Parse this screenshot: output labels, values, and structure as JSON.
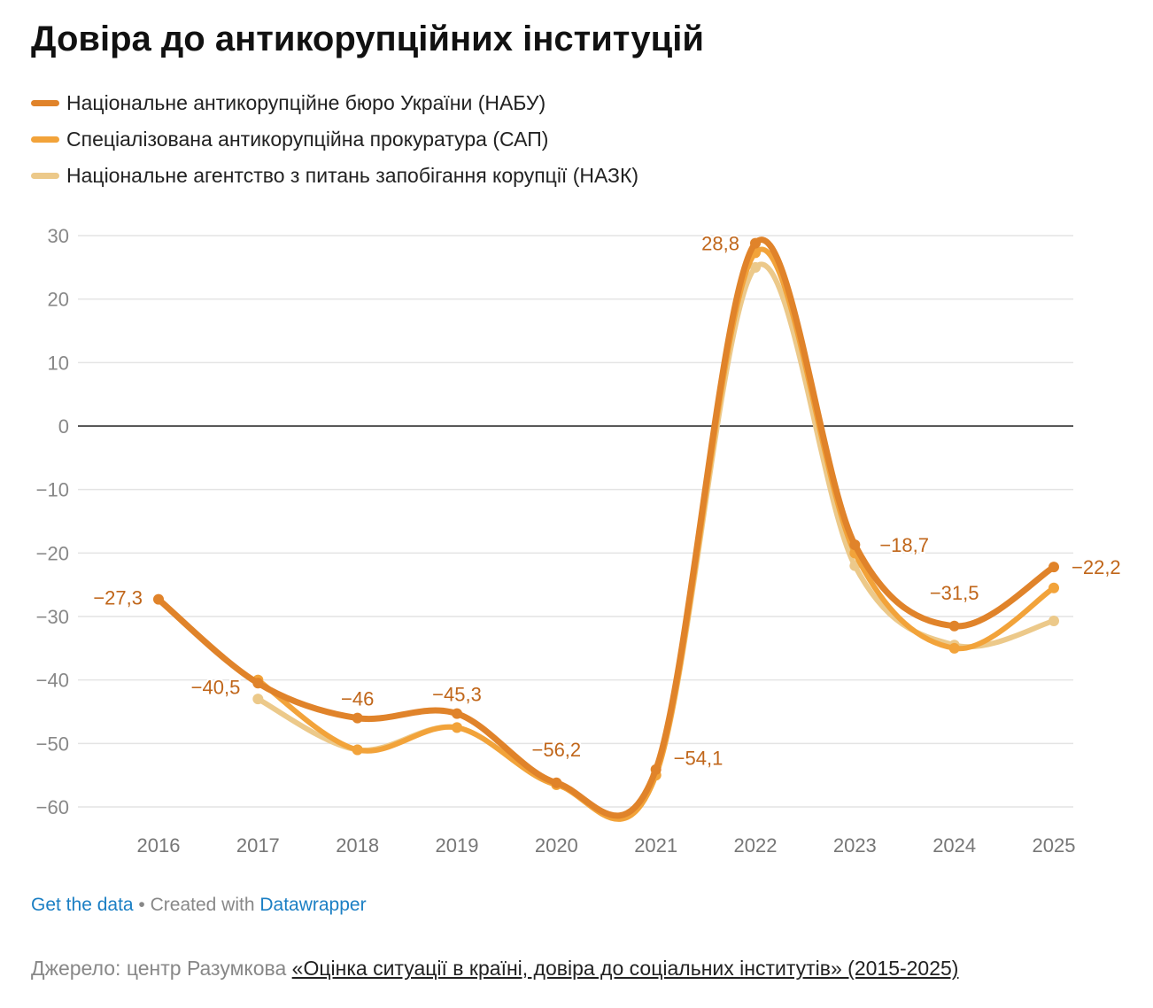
{
  "title": "Довіра до антикорупційних інституцій",
  "chart_data": {
    "type": "line",
    "title": "Довіра до антикорупційних інституцій",
    "x": [
      2016,
      2017,
      2018,
      2019,
      2020,
      2021,
      2022,
      2023,
      2024,
      2025
    ],
    "x_labels": [
      "2016",
      "2017",
      "2018",
      "2019",
      "2020",
      "2021",
      "2022",
      "2023",
      "2024",
      "2025"
    ],
    "ylim": [
      -60,
      30
    ],
    "y_ticks": [
      30,
      20,
      10,
      0,
      -10,
      -20,
      -30,
      -40,
      -50,
      -60
    ],
    "y_tick_labels": [
      "30",
      "20",
      "10",
      "0",
      "−10",
      "−20",
      "−30",
      "−40",
      "−50",
      "−60"
    ],
    "grid": true,
    "legend_position": "top-left",
    "series": [
      {
        "name": "Національне антикорупційне бюро України (НАБУ)",
        "color": "#e0832a",
        "values": [
          -27.3,
          -40.5,
          -46,
          -45.3,
          -56.2,
          -54.1,
          28.8,
          -18.7,
          -31.5,
          -22.2
        ],
        "labels": [
          "−27,3",
          "−40,5",
          "−46",
          "−45,3",
          "−56,2",
          "−54,1",
          "28,8",
          "−18,7",
          "−31,5",
          "−22,2"
        ]
      },
      {
        "name": "Спеціалізована антикорупційна прокуратура (САП)",
        "color": "#f2a33a",
        "values": [
          null,
          -40,
          -51,
          -47.5,
          -56.5,
          -55,
          27.3,
          -20,
          -35,
          -25.5
        ]
      },
      {
        "name": "Національне агентство з питань запобігання корупції (НАЗК)",
        "color": "#ecc98a",
        "values": [
          null,
          -43,
          -51,
          -47.5,
          -56.5,
          -55,
          25,
          -22,
          -34.5,
          -30.7
        ]
      }
    ],
    "label_color": "#c0661a"
  },
  "footer": {
    "get_data": "Get the data",
    "sep": " • Created with ",
    "datawrapper": "Datawrapper",
    "source_prefix": "Джерело: центр Разумкова ",
    "source_link": "«Оцінка ситуації в країні, довіра до соціальних інститутів» (2015-2025)"
  }
}
